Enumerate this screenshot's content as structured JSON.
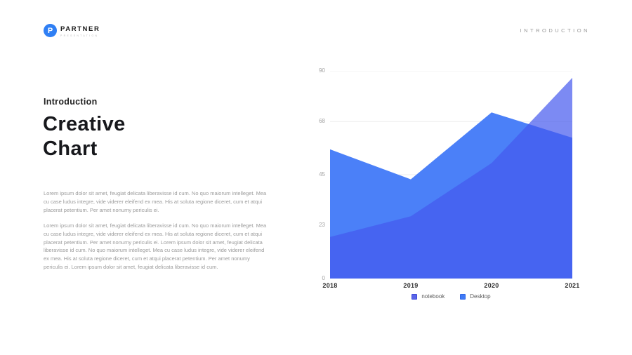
{
  "header": {
    "logo_mark": "P",
    "logo_text": "PARTNER",
    "logo_subtext": "PRESENTATION",
    "eyebrow": "INTRODUCTION"
  },
  "content": {
    "kicker": "Introduction",
    "title_line1": "Creative",
    "title_line2": "Chart",
    "paragraph1": "Lorem ipsum dolor sit amet, feugiat delicata liberavisse id cum. No quo maiorum intelleget. Mea cu case ludus integre, vide viderer eleifend ex mea. His at soluta regione diceret, cum et atqui placerat petentium. Per amet nonumy periculis ei.",
    "paragraph2": "Lorem ipsum dolor sit amet, feugiat delicata liberavisse id cum. No quo maiorum intelleget. Mea cu case ludus integre, vide viderer eleifend ex mea. His at soluta regione diceret, cum et atqui placerat petentium. Per amet nonumy periculis ei. Lorem ipsum dolor sit amet, feugiat delicata liberavisse id cum. No quo maiorum intelleget. Mea cu case ludus integre, vide viderer eleifend ex mea. His at soluta regione diceret, cum et atqui placerat petentium. Per amet nonumy periculis ei. Lorem ipsum dolor sit amet, feugiat delicata liberavisse id cum."
  },
  "chart_data": {
    "type": "area",
    "categories": [
      "2018",
      "2019",
      "2020",
      "2021"
    ],
    "series": [
      {
        "name": "Desktop",
        "values": [
          56,
          43,
          72,
          61
        ],
        "fill": "#4b80f8",
        "opacity": 1
      },
      {
        "name": "notebook",
        "values": [
          18,
          27,
          50,
          87
        ],
        "fill": "#4458ee",
        "opacity": 0.7
      }
    ],
    "ylim": [
      0,
      90
    ],
    "y_ticks": [
      0,
      23,
      45,
      68,
      90
    ],
    "grid": true,
    "gridline_color": "#eeeeee",
    "legend_position": "bottom",
    "legend": [
      {
        "label": "notebook",
        "color": "#5a65e8",
        "border": "#3f4bd9"
      },
      {
        "label": "Desktop",
        "color": "#3f7af6",
        "border": "#2e66e6"
      }
    ]
  }
}
